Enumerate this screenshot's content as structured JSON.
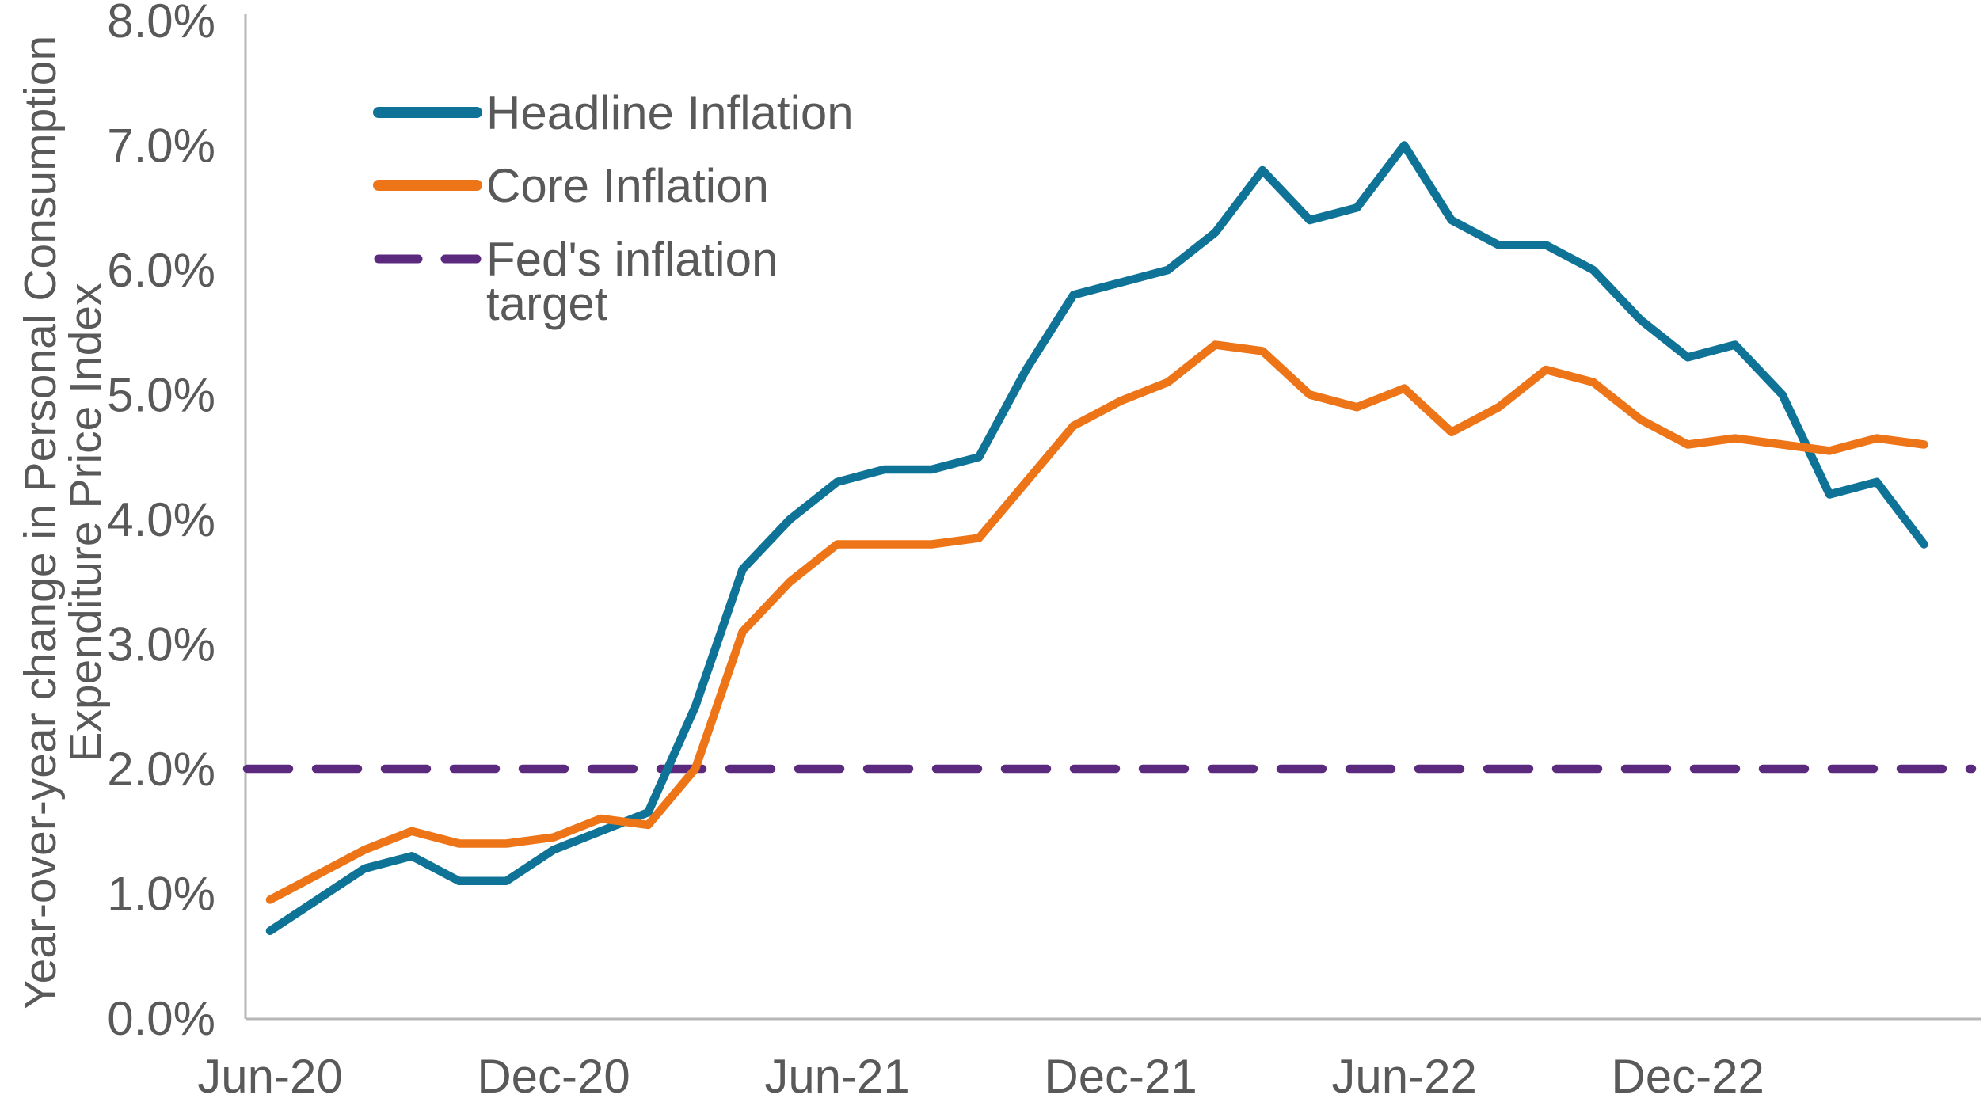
{
  "colors": {
    "headline": "#0e7396",
    "core": "#ee7418",
    "target": "#5b2a7e",
    "text_gray": "#595959",
    "axis_gray": "#b7b7b7",
    "background": "#ffffff"
  },
  "y_axis": {
    "title": "Year-over-year change in Personal Consumption Expenditure Price Index",
    "title_lines": [
      "Year-over-year change in Personal Consumption",
      "Expenditure Price Index"
    ],
    "tick_labels": [
      "0.0%",
      "1.0%",
      "2.0%",
      "3.0%",
      "4.0%",
      "5.0%",
      "6.0%",
      "7.0%",
      "8.0%"
    ],
    "min": 0,
    "max": 8
  },
  "x_axis": {
    "ticks": [
      {
        "label": "Jun-20",
        "month_index": 0
      },
      {
        "label": "Dec-20",
        "month_index": 6
      },
      {
        "label": "Jun-21",
        "month_index": 12
      },
      {
        "label": "Dec-21",
        "month_index": 18
      },
      {
        "label": "Jun-22",
        "month_index": 24
      },
      {
        "label": "Dec-22",
        "month_index": 30
      }
    ]
  },
  "legend": {
    "items": [
      {
        "label": "Headline Inflation",
        "style": "solid",
        "color": "#0e7396"
      },
      {
        "label": "Core Inflation",
        "style": "solid",
        "color": "#ee7418"
      },
      {
        "label": "Fed's inflation target",
        "lines": [
          "Fed's inflation",
          "target"
        ],
        "style": "dashed",
        "color": "#5b2a7e"
      }
    ]
  },
  "chart_data": {
    "type": "line",
    "title": "",
    "xlabel": "",
    "ylabel": "Year-over-year change in Personal Consumption Expenditure Price Index",
    "unit": "percent",
    "ylim": [
      0,
      8
    ],
    "grid": false,
    "legend_position": "top-left-inside",
    "x": [
      "Jun-20",
      "Jul-20",
      "Aug-20",
      "Sep-20",
      "Oct-20",
      "Nov-20",
      "Dec-20",
      "Jan-21",
      "Feb-21",
      "Mar-21",
      "Apr-21",
      "May-21",
      "Jun-21",
      "Jul-21",
      "Aug-21",
      "Sep-21",
      "Oct-21",
      "Nov-21",
      "Dec-21",
      "Jan-22",
      "Feb-22",
      "Mar-22",
      "Apr-22",
      "May-22",
      "Jun-22",
      "Jul-22",
      "Aug-22",
      "Sep-22",
      "Oct-22",
      "Nov-22",
      "Dec-22",
      "Jan-23",
      "Feb-23",
      "Mar-23",
      "Apr-23",
      "May-23"
    ],
    "series": [
      {
        "name": "Headline Inflation",
        "color": "#0e7396",
        "values": [
          0.7,
          0.95,
          1.2,
          1.3,
          1.1,
          1.1,
          1.35,
          1.5,
          1.65,
          2.5,
          3.6,
          4.0,
          4.3,
          4.4,
          4.4,
          4.5,
          5.2,
          5.8,
          5.9,
          6.0,
          6.3,
          6.8,
          6.4,
          6.5,
          7.0,
          6.4,
          6.2,
          6.2,
          6.0,
          5.6,
          5.3,
          5.4,
          5.0,
          4.2,
          4.3,
          3.8
        ]
      },
      {
        "name": "Core Inflation",
        "color": "#ee7418",
        "values": [
          0.95,
          1.15,
          1.35,
          1.5,
          1.4,
          1.4,
          1.45,
          1.6,
          1.55,
          2.0,
          3.1,
          3.5,
          3.8,
          3.8,
          3.8,
          3.85,
          4.3,
          4.75,
          4.95,
          5.1,
          5.4,
          5.35,
          5.0,
          4.9,
          5.05,
          4.7,
          4.9,
          5.2,
          5.1,
          4.8,
          4.6,
          4.65,
          4.6,
          4.55,
          4.65,
          4.6
        ]
      }
    ],
    "target": {
      "name": "Fed's inflation target",
      "value": 2.0,
      "color": "#5b2a7e",
      "style": "dashed"
    }
  }
}
